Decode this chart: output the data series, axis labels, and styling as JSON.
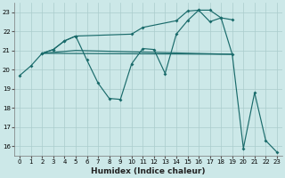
{
  "xlabel": "Humidex (Indice chaleur)",
  "bg_color": "#cce8e8",
  "grid_color": "#aacccc",
  "line_color": "#1a6b6b",
  "xlim": [
    -0.5,
    23.5
  ],
  "ylim": [
    15.5,
    23.5
  ],
  "yticks": [
    16,
    17,
    18,
    19,
    20,
    21,
    22,
    23
  ],
  "xticks": [
    0,
    1,
    2,
    3,
    4,
    5,
    6,
    7,
    8,
    9,
    10,
    11,
    12,
    13,
    14,
    15,
    16,
    17,
    18,
    19,
    20,
    21,
    22,
    23
  ],
  "curves": [
    {
      "x": [
        0,
        1,
        2,
        3,
        4,
        5,
        6,
        7,
        8,
        9,
        10,
        11,
        12,
        13,
        14,
        15,
        16,
        17,
        18,
        19,
        20,
        21,
        22,
        23
      ],
      "y": [
        19.7,
        20.2,
        20.85,
        21.05,
        21.5,
        21.75,
        20.5,
        19.3,
        18.5,
        18.45,
        20.3,
        21.1,
        21.05,
        19.8,
        21.85,
        22.55,
        23.1,
        23.1,
        22.7,
        20.8,
        15.9,
        18.8,
        16.3,
        15.7
      ]
    },
    {
      "x": [
        2,
        5,
        19
      ],
      "y": [
        20.85,
        21.0,
        20.8
      ]
    },
    {
      "x": [
        2,
        19
      ],
      "y": [
        20.85,
        20.8
      ]
    },
    {
      "x": [
        2,
        3,
        4,
        5,
        10,
        11,
        14,
        15,
        16,
        17,
        18,
        19
      ],
      "y": [
        20.85,
        21.05,
        21.5,
        21.75,
        21.85,
        22.2,
        22.55,
        23.05,
        23.1,
        22.5,
        22.7,
        22.6
      ]
    }
  ]
}
